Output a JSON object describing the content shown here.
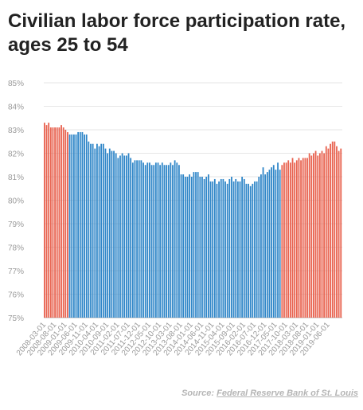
{
  "chart_data": {
    "type": "bar",
    "title": "Civilian labor force participation rate, ages 25 to 54",
    "xlabel": "",
    "ylabel": "",
    "ylim": [
      75,
      85
    ],
    "yticks": [
      "75%",
      "76%",
      "77%",
      "78%",
      "79%",
      "80%",
      "81%",
      "82%",
      "83%",
      "84%",
      "85%"
    ],
    "grid": true,
    "legend": "none",
    "colors": {
      "recession_or_recovery": "#e8624f",
      "middle": "#2f86c8"
    },
    "tick_labels": [
      "2008-03-01",
      "2008-08-01",
      "2009-01-01",
      "2009-06-01",
      "2009-11-01",
      "2010-04-01",
      "2010-09-01",
      "2011-02-01",
      "2011-07-01",
      "2011-12-01",
      "2012-05-01",
      "2012-10-01",
      "2013-03-01",
      "2013-08-01",
      "2014-01-01",
      "2014-06-01",
      "2014-11-01",
      "2015-04-01",
      "2015-09-01",
      "2016-02-01",
      "2016-07-01",
      "2016-12-01",
      "2017-05-01",
      "2017-10-01",
      "2018-03-01",
      "2018-08-01",
      "2019-01-01",
      "2019-06-01"
    ],
    "series": [
      {
        "start": "2008-03-01",
        "color_key": "recession_or_recovery",
        "values": [
          83.3,
          83.2,
          83.3,
          83.1,
          83.1,
          83.1,
          83.1,
          83.1,
          83.2,
          83.1,
          83.0,
          82.9
        ]
      },
      {
        "start": "2009-03-01",
        "color_key": "middle",
        "values": [
          82.8,
          82.8,
          82.8,
          82.8,
          82.9,
          82.9,
          82.9,
          82.8,
          82.8,
          82.5,
          82.4,
          82.4,
          82.2,
          82.4,
          82.3,
          82.4,
          82.4,
          82.2,
          82.0,
          82.2,
          82.1,
          82.1,
          82.0,
          81.8,
          81.9,
          82.0,
          81.9,
          81.9,
          82.0,
          81.8,
          81.6,
          81.7,
          81.7,
          81.7,
          81.7,
          81.6,
          81.5,
          81.6,
          81.6,
          81.5,
          81.5,
          81.6,
          81.6,
          81.5,
          81.6,
          81.5,
          81.5,
          81.5,
          81.6,
          81.5,
          81.7,
          81.6,
          81.5,
          81.1,
          81.1,
          81.0,
          81.0,
          81.1,
          81.0,
          81.2,
          81.2,
          81.2,
          81.0,
          81.0,
          80.9,
          81.0,
          81.1,
          80.8,
          80.8,
          80.9,
          80.7,
          80.8,
          80.9,
          80.9,
          80.8,
          80.7,
          80.9,
          81.0,
          80.8,
          80.9,
          80.8,
          80.8,
          81.0,
          80.9,
          80.7,
          80.7,
          80.6,
          80.7,
          80.8,
          80.8,
          81.0,
          81.1,
          81.4,
          81.1,
          81.2,
          81.3,
          81.4,
          81.5,
          81.3,
          81.6,
          81.3
        ]
      },
      {
        "start": "2017-04-01",
        "color_key": "recession_or_recovery",
        "values": [
          81.5,
          81.6,
          81.6,
          81.7,
          81.6,
          81.8,
          81.6,
          81.7,
          81.8,
          81.7,
          81.8,
          81.8,
          81.8,
          82.0,
          81.9,
          82.0,
          82.1,
          81.9,
          82.0,
          82.1,
          82.0,
          82.3,
          82.2,
          82.4,
          82.5,
          82.5,
          82.3,
          82.1,
          82.2
        ]
      }
    ]
  },
  "source": {
    "prefix": "Source: ",
    "link_text": "Federal Reserve Bank of St. Louis"
  }
}
